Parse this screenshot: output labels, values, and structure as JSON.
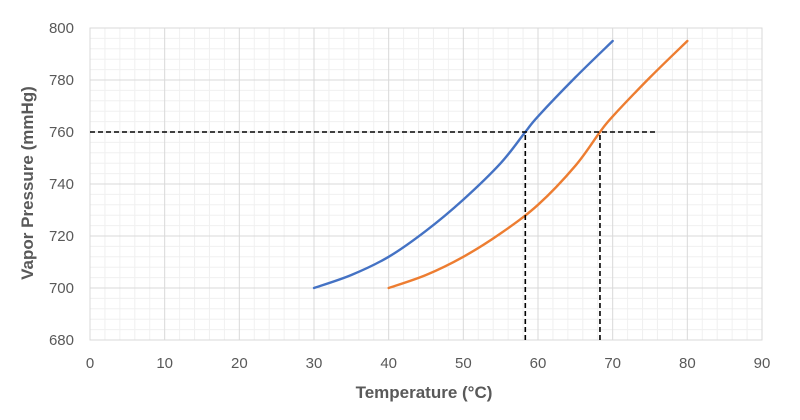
{
  "chart_data": {
    "type": "line",
    "xlabel": "Temperature (°C)",
    "ylabel": "Vapor Pressure (mmHg)",
    "xlim": [
      0,
      90
    ],
    "ylim": [
      680,
      800
    ],
    "x_ticks": [
      "0",
      "10",
      "20",
      "30",
      "40",
      "50",
      "60",
      "70",
      "80",
      "90"
    ],
    "y_ticks": [
      "680",
      "700",
      "720",
      "740",
      "760",
      "780",
      "800"
    ],
    "grid": true,
    "legend": "none",
    "series": [
      {
        "color": "#4472c4",
        "points": [
          [
            30,
            700
          ],
          [
            35,
            705
          ],
          [
            40,
            712
          ],
          [
            45,
            722
          ],
          [
            50,
            734
          ],
          [
            55,
            748
          ],
          [
            58.3,
            760
          ],
          [
            60,
            766
          ],
          [
            65,
            781
          ],
          [
            70,
            795
          ]
        ]
      },
      {
        "color": "#ed7d31",
        "points": [
          [
            40,
            700
          ],
          [
            45,
            705
          ],
          [
            50,
            712
          ],
          [
            55,
            721
          ],
          [
            60,
            732
          ],
          [
            65,
            747
          ],
          [
            68.3,
            760
          ],
          [
            70,
            766
          ],
          [
            75,
            781
          ],
          [
            80,
            795
          ]
        ]
      }
    ],
    "reference_lines": [
      {
        "type": "horizontal",
        "y": 760,
        "x_from": 0,
        "x_to": 76
      },
      {
        "type": "vertical",
        "x": 58.3,
        "y_from": 680,
        "y_to": 760
      },
      {
        "type": "vertical",
        "x": 68.3,
        "y_from": 680,
        "y_to": 760
      }
    ]
  }
}
